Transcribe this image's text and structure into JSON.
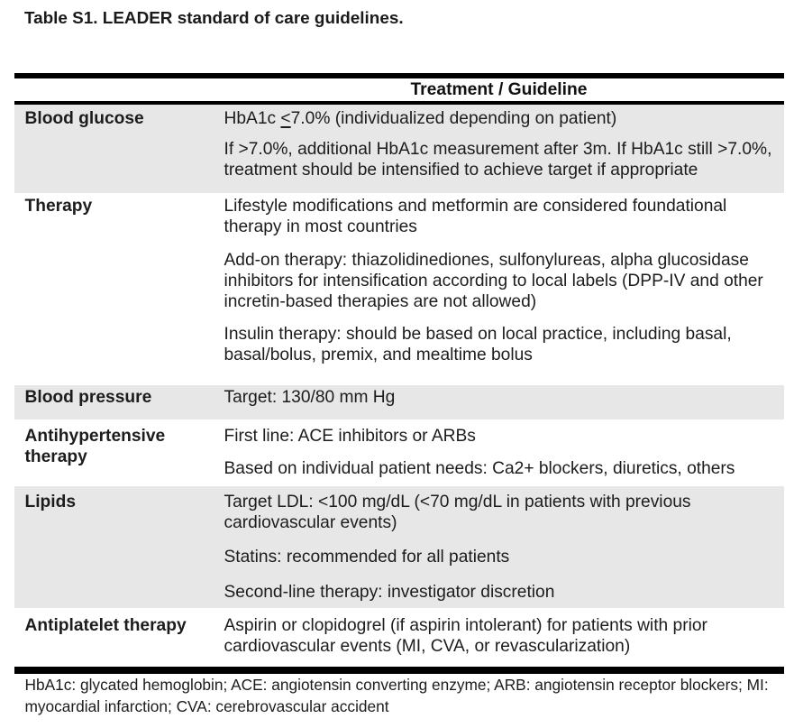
{
  "title": "Table S1. LEADER standard of care guidelines.",
  "table": {
    "header": "Treatment / Guideline",
    "rows": [
      {
        "id": "blood-glucose",
        "label": [
          "Blood glucose"
        ],
        "paragraphs": [
          [
            [
              "HbA1c ",
              {
                "t": "<",
                "u": true
              },
              "7.0% (individualized depending on patient)"
            ]
          ],
          [
            "If >7.0%, additional HbA1c measurement after 3m. If HbA1c still >7.0%,",
            "treatment should be intensified to achieve target if appropriate"
          ]
        ]
      },
      {
        "id": "therapy",
        "label": [
          "Therapy"
        ],
        "paragraphs": [
          [
            "Lifestyle modifications and metformin are considered foundational",
            "therapy in most countries"
          ],
          [
            "Add-on therapy: thiazolidinediones, sulfonylureas, alpha glucosidase",
            "inhibitors for intensification according to local labels (DPP-IV and other",
            "incretin-based therapies are not allowed)"
          ],
          [
            "Insulin therapy: should be based on local practice, including basal,",
            "basal/bolus, premix, and mealtime bolus"
          ]
        ]
      },
      {
        "id": "blood-pressure",
        "label": [
          "Blood pressure"
        ],
        "paragraphs": [
          [
            "Target: 130/80 mm Hg"
          ]
        ]
      },
      {
        "id": "antihypertensive-therapy",
        "label": [
          "Antihypertensive",
          "therapy"
        ],
        "paragraphs": [
          [
            "First line: ACE inhibitors or ARBs"
          ],
          [
            "Based on individual patient needs: Ca2+ blockers, diuretics, others"
          ]
        ]
      },
      {
        "id": "lipids",
        "label": [
          "Lipids"
        ],
        "paragraphs": [
          [
            "Target LDL: <100 mg/dL (<70 mg/dL in patients with previous",
            "cardiovascular events)"
          ],
          [
            "Statins: recommended for all patients"
          ],
          [
            "Second-line therapy: investigator discretion"
          ]
        ]
      },
      {
        "id": "antiplatelet-therapy",
        "label": [
          "Antiplatelet therapy"
        ],
        "paragraphs": [
          [
            "Aspirin or clopidogrel (if aspirin intolerant) for patients with prior",
            "cardiovascular events (MI, CVA, or revascularization)"
          ]
        ]
      }
    ]
  },
  "footnote": [
    "HbA1c: glycated hemoglobin; ACE: angiotensin converting enzyme; ARB: angiotensin receptor blockers; MI:",
    "myocardial infarction; CVA: cerebrovascular accident"
  ],
  "colors": {
    "row_shading": "#e7e7e7",
    "rule": "#000000",
    "text": "#1c1c1c",
    "background": "#ffffff"
  }
}
